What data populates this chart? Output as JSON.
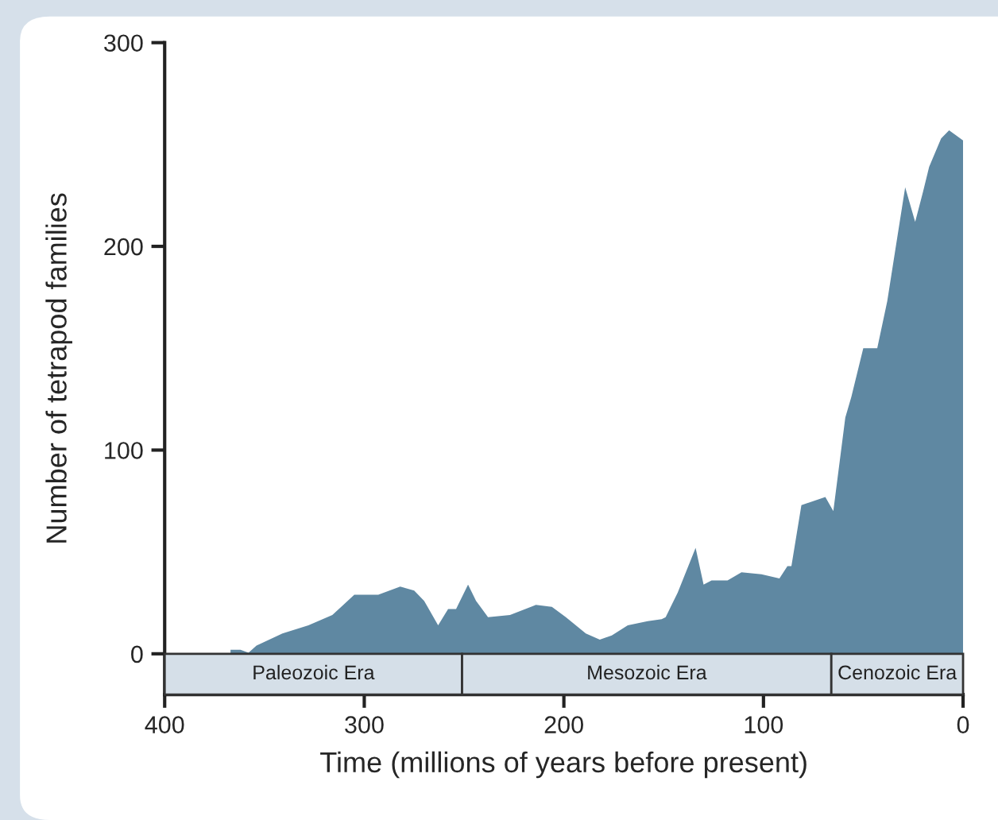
{
  "chart_data": {
    "type": "area",
    "xlabel": "Time (millions of years before present)",
    "ylabel": "Number of tetrapod families",
    "xlim": [
      400,
      0
    ],
    "ylim": [
      -20,
      300
    ],
    "xticks": [
      400,
      300,
      200,
      100,
      0
    ],
    "yticks": [
      0,
      100,
      200,
      300
    ],
    "grid": false,
    "series": [
      {
        "color": "#5f88a2",
        "x": [
          367,
          362,
          358,
          354,
          341,
          328,
          316,
          305,
          293,
          282,
          275,
          270,
          263,
          258,
          254,
          248,
          244,
          238,
          227,
          214,
          206,
          199,
          189,
          182,
          176,
          168,
          158,
          151,
          149,
          143,
          134,
          130,
          126,
          118,
          111,
          101,
          92,
          88,
          86,
          81,
          69,
          65,
          59,
          56,
          50,
          43,
          38,
          34,
          29,
          24,
          20,
          17,
          11,
          7,
          0
        ],
        "values": [
          2,
          2,
          0.5,
          4,
          10,
          14,
          19,
          29,
          29,
          33,
          31,
          26,
          14,
          22,
          22,
          34,
          26,
          18,
          19,
          24,
          23,
          18,
          10,
          7,
          9,
          14,
          16,
          17,
          18,
          30,
          52,
          34,
          36,
          36,
          40,
          39,
          37,
          43,
          43,
          73,
          77,
          70,
          116,
          126,
          150,
          150,
          173,
          198,
          229,
          212,
          227,
          239,
          253,
          257,
          252
        ]
      }
    ],
    "bands": [
      {
        "axis": "x",
        "from": 400,
        "to": 251,
        "label": "Paleozoic Era",
        "color": "#d5dfe8"
      },
      {
        "axis": "x",
        "from": 251,
        "to": 66,
        "label": "Mesozoic Era",
        "color": "#d5dfe8"
      },
      {
        "axis": "x",
        "from": 66,
        "to": 0,
        "label": "Cenozoic Era",
        "color": "#d5dfe8"
      }
    ]
  }
}
